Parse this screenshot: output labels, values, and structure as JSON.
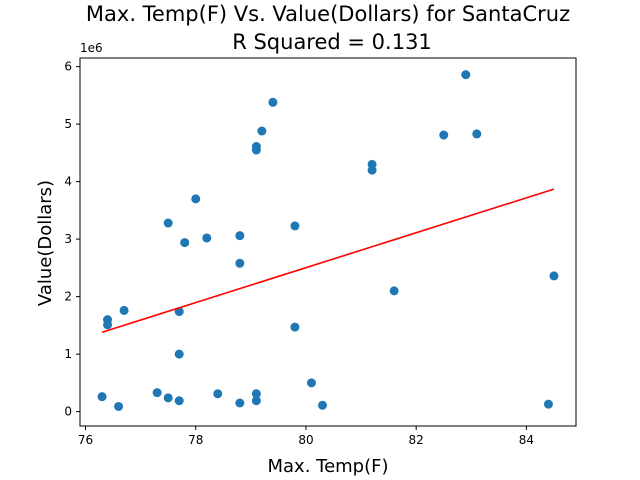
{
  "chart_data": {
    "type": "scatter",
    "title_line1": "Max. Temp(F) Vs. Value(Dollars) for SantaCruz",
    "title_line2": "R Squared =  0.131",
    "xlabel": "Max. Temp(F)",
    "ylabel": "Value(Dollars)",
    "y_offset_label": "1e6",
    "xlim": [
      75.9,
      84.9
    ],
    "ylim": [
      -0.25,
      6.15
    ],
    "x_ticks": [
      76,
      78,
      80,
      82,
      84
    ],
    "x_tick_labels": [
      "76",
      "78",
      "80",
      "82",
      "84"
    ],
    "y_ticks": [
      0,
      1,
      2,
      3,
      4,
      5,
      6
    ],
    "y_tick_labels": [
      "0",
      "1",
      "2",
      "3",
      "4",
      "5",
      "6"
    ],
    "grid": false,
    "point_color": "#1f77b4",
    "line_color": "#ff0000",
    "points": [
      {
        "x": 76.3,
        "y": 0.26
      },
      {
        "x": 76.4,
        "y": 1.6
      },
      {
        "x": 76.4,
        "y": 1.51
      },
      {
        "x": 76.6,
        "y": 0.09
      },
      {
        "x": 76.7,
        "y": 1.76
      },
      {
        "x": 77.3,
        "y": 0.33
      },
      {
        "x": 77.5,
        "y": 3.28
      },
      {
        "x": 77.5,
        "y": 0.24
      },
      {
        "x": 77.7,
        "y": 0.19
      },
      {
        "x": 77.7,
        "y": 1.74
      },
      {
        "x": 77.7,
        "y": 1.0
      },
      {
        "x": 77.8,
        "y": 2.94
      },
      {
        "x": 78.0,
        "y": 3.7
      },
      {
        "x": 78.2,
        "y": 3.02
      },
      {
        "x": 78.4,
        "y": 0.31
      },
      {
        "x": 78.8,
        "y": 3.06
      },
      {
        "x": 78.8,
        "y": 2.58
      },
      {
        "x": 78.8,
        "y": 0.15
      },
      {
        "x": 79.1,
        "y": 4.61
      },
      {
        "x": 79.1,
        "y": 4.55
      },
      {
        "x": 79.1,
        "y": 0.31
      },
      {
        "x": 79.1,
        "y": 0.19
      },
      {
        "x": 79.2,
        "y": 4.88
      },
      {
        "x": 79.4,
        "y": 5.38
      },
      {
        "x": 79.8,
        "y": 3.23
      },
      {
        "x": 79.8,
        "y": 1.47
      },
      {
        "x": 80.1,
        "y": 0.5
      },
      {
        "x": 80.3,
        "y": 0.11
      },
      {
        "x": 81.2,
        "y": 4.3
      },
      {
        "x": 81.2,
        "y": 4.2
      },
      {
        "x": 81.6,
        "y": 2.1
      },
      {
        "x": 82.5,
        "y": 4.81
      },
      {
        "x": 82.9,
        "y": 5.86
      },
      {
        "x": 83.1,
        "y": 4.83
      },
      {
        "x": 84.4,
        "y": 0.13
      },
      {
        "x": 84.5,
        "y": 2.36
      }
    ],
    "fit_line": [
      {
        "x": 76.3,
        "y": 1.38
      },
      {
        "x": 84.5,
        "y": 3.87
      }
    ]
  }
}
